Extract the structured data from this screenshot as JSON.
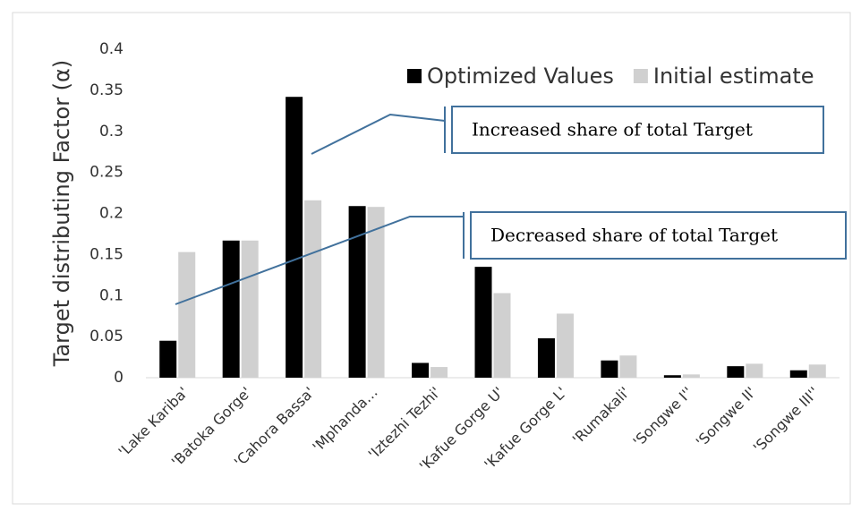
{
  "chart_data": {
    "type": "bar",
    "ylabel": "Target distributing Factor (α)",
    "categories": [
      "'Lake Kariba'",
      "'Batoka Gorge'",
      "'Cahora Bassa'",
      "'Mphanda…",
      "'Iztezhi Tezhi'",
      "'Kafue Gorge U'",
      "'Kafue Gorge L'",
      "'Rumakali'",
      "'Songwe I''",
      "'Songwe II'",
      "'Songwe III''"
    ],
    "series": [
      {
        "name": "Optimized Values",
        "color": "#000000",
        "values": [
          0.045,
          0.167,
          0.342,
          0.209,
          0.018,
          0.135,
          0.048,
          0.021,
          0.003,
          0.014,
          0.009
        ]
      },
      {
        "name": "Initial estimate",
        "color": "#d0d0d0",
        "values": [
          0.153,
          0.167,
          0.216,
          0.208,
          0.013,
          0.103,
          0.078,
          0.027,
          0.004,
          0.017,
          0.016
        ]
      }
    ],
    "ylim": [
      0,
      0.4
    ],
    "yticks": [
      0,
      0.05,
      0.1,
      0.15,
      0.2,
      0.25,
      0.3,
      0.35,
      0.4
    ],
    "grid": false,
    "legend": "top-right",
    "annotations": [
      "Increased share of total Target",
      "Decreased share of total Target"
    ]
  }
}
